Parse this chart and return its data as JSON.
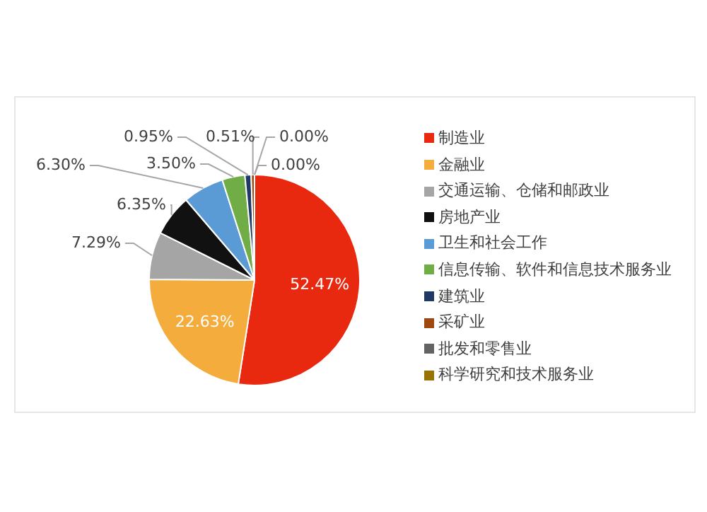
{
  "chart_data": {
    "type": "pie",
    "categories": [
      "制造业",
      "金融业",
      "交通运输、仓储和邮政业",
      "房地产业",
      "卫生和社会工作",
      "信息传输、软件和信息技术服务业",
      "建筑业",
      "采矿业",
      "批发和零售业",
      "科学研究和技术服务业"
    ],
    "values": [
      52.47,
      22.63,
      7.29,
      6.35,
      6.3,
      3.5,
      0.95,
      0.51,
      0.0,
      0.0
    ],
    "value_labels": [
      "52.47%",
      "22.63%",
      "7.29%",
      "6.35%",
      "6.30%",
      "3.50%",
      "0.95%",
      "0.51%",
      "0.00%",
      "0.00%"
    ],
    "colors": [
      "#e8290f",
      "#f4ac3c",
      "#a5a5a5",
      "#111111",
      "#5b9bd5",
      "#70ad47",
      "#1f3864",
      "#9e480e",
      "#636363",
      "#997300"
    ],
    "data_labels": true,
    "legend": "right"
  }
}
